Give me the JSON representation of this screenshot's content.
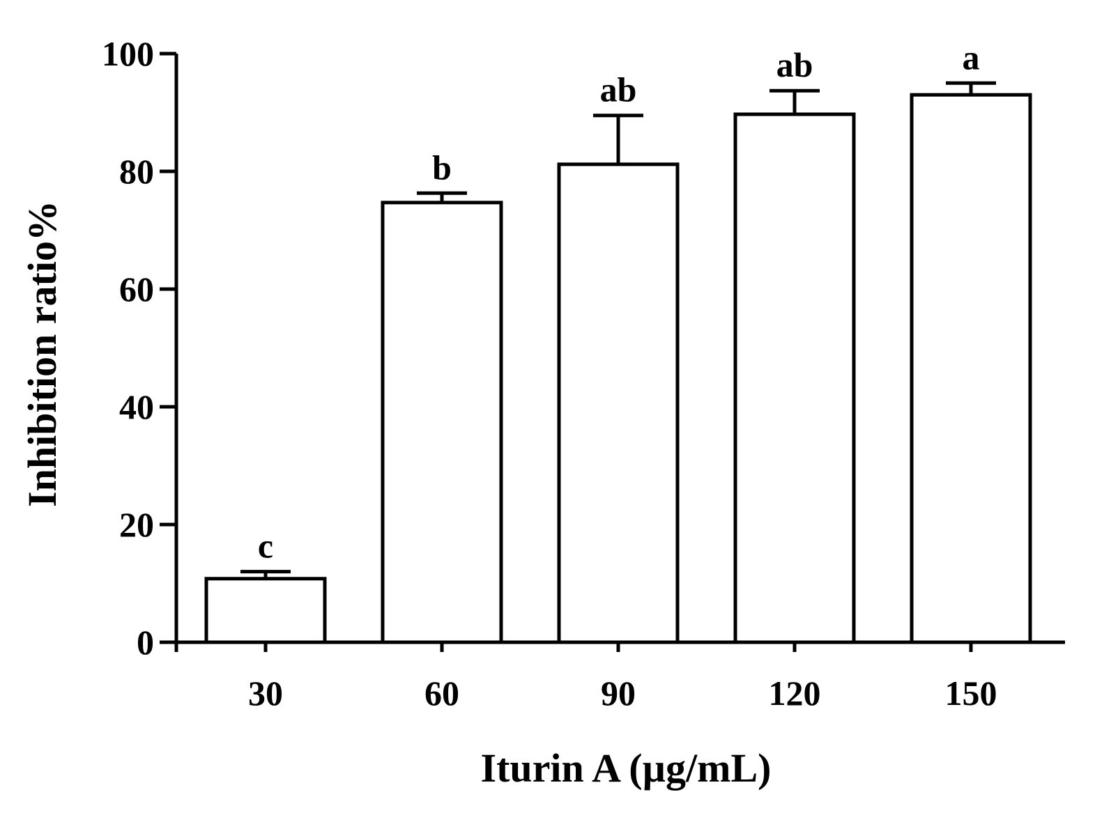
{
  "chart_data": {
    "type": "bar",
    "categories": [
      "30",
      "60",
      "90",
      "120",
      "150"
    ],
    "values": [
      10.8,
      74.7,
      81.2,
      89.7,
      93.0
    ],
    "errors": [
      1.2,
      1.6,
      8.3,
      4.0,
      2.0
    ],
    "significance_labels": [
      "c",
      "b",
      "ab",
      "ab",
      "a"
    ],
    "xlabel": "Iturin A (µg/mL)",
    "ylabel": "Inhibition ratio%",
    "ylim": [
      0,
      100
    ],
    "yticks": [
      0,
      20,
      40,
      60,
      80,
      100
    ],
    "grid": false,
    "bar_fill": "#ffffff",
    "bar_stroke": "#000000"
  }
}
